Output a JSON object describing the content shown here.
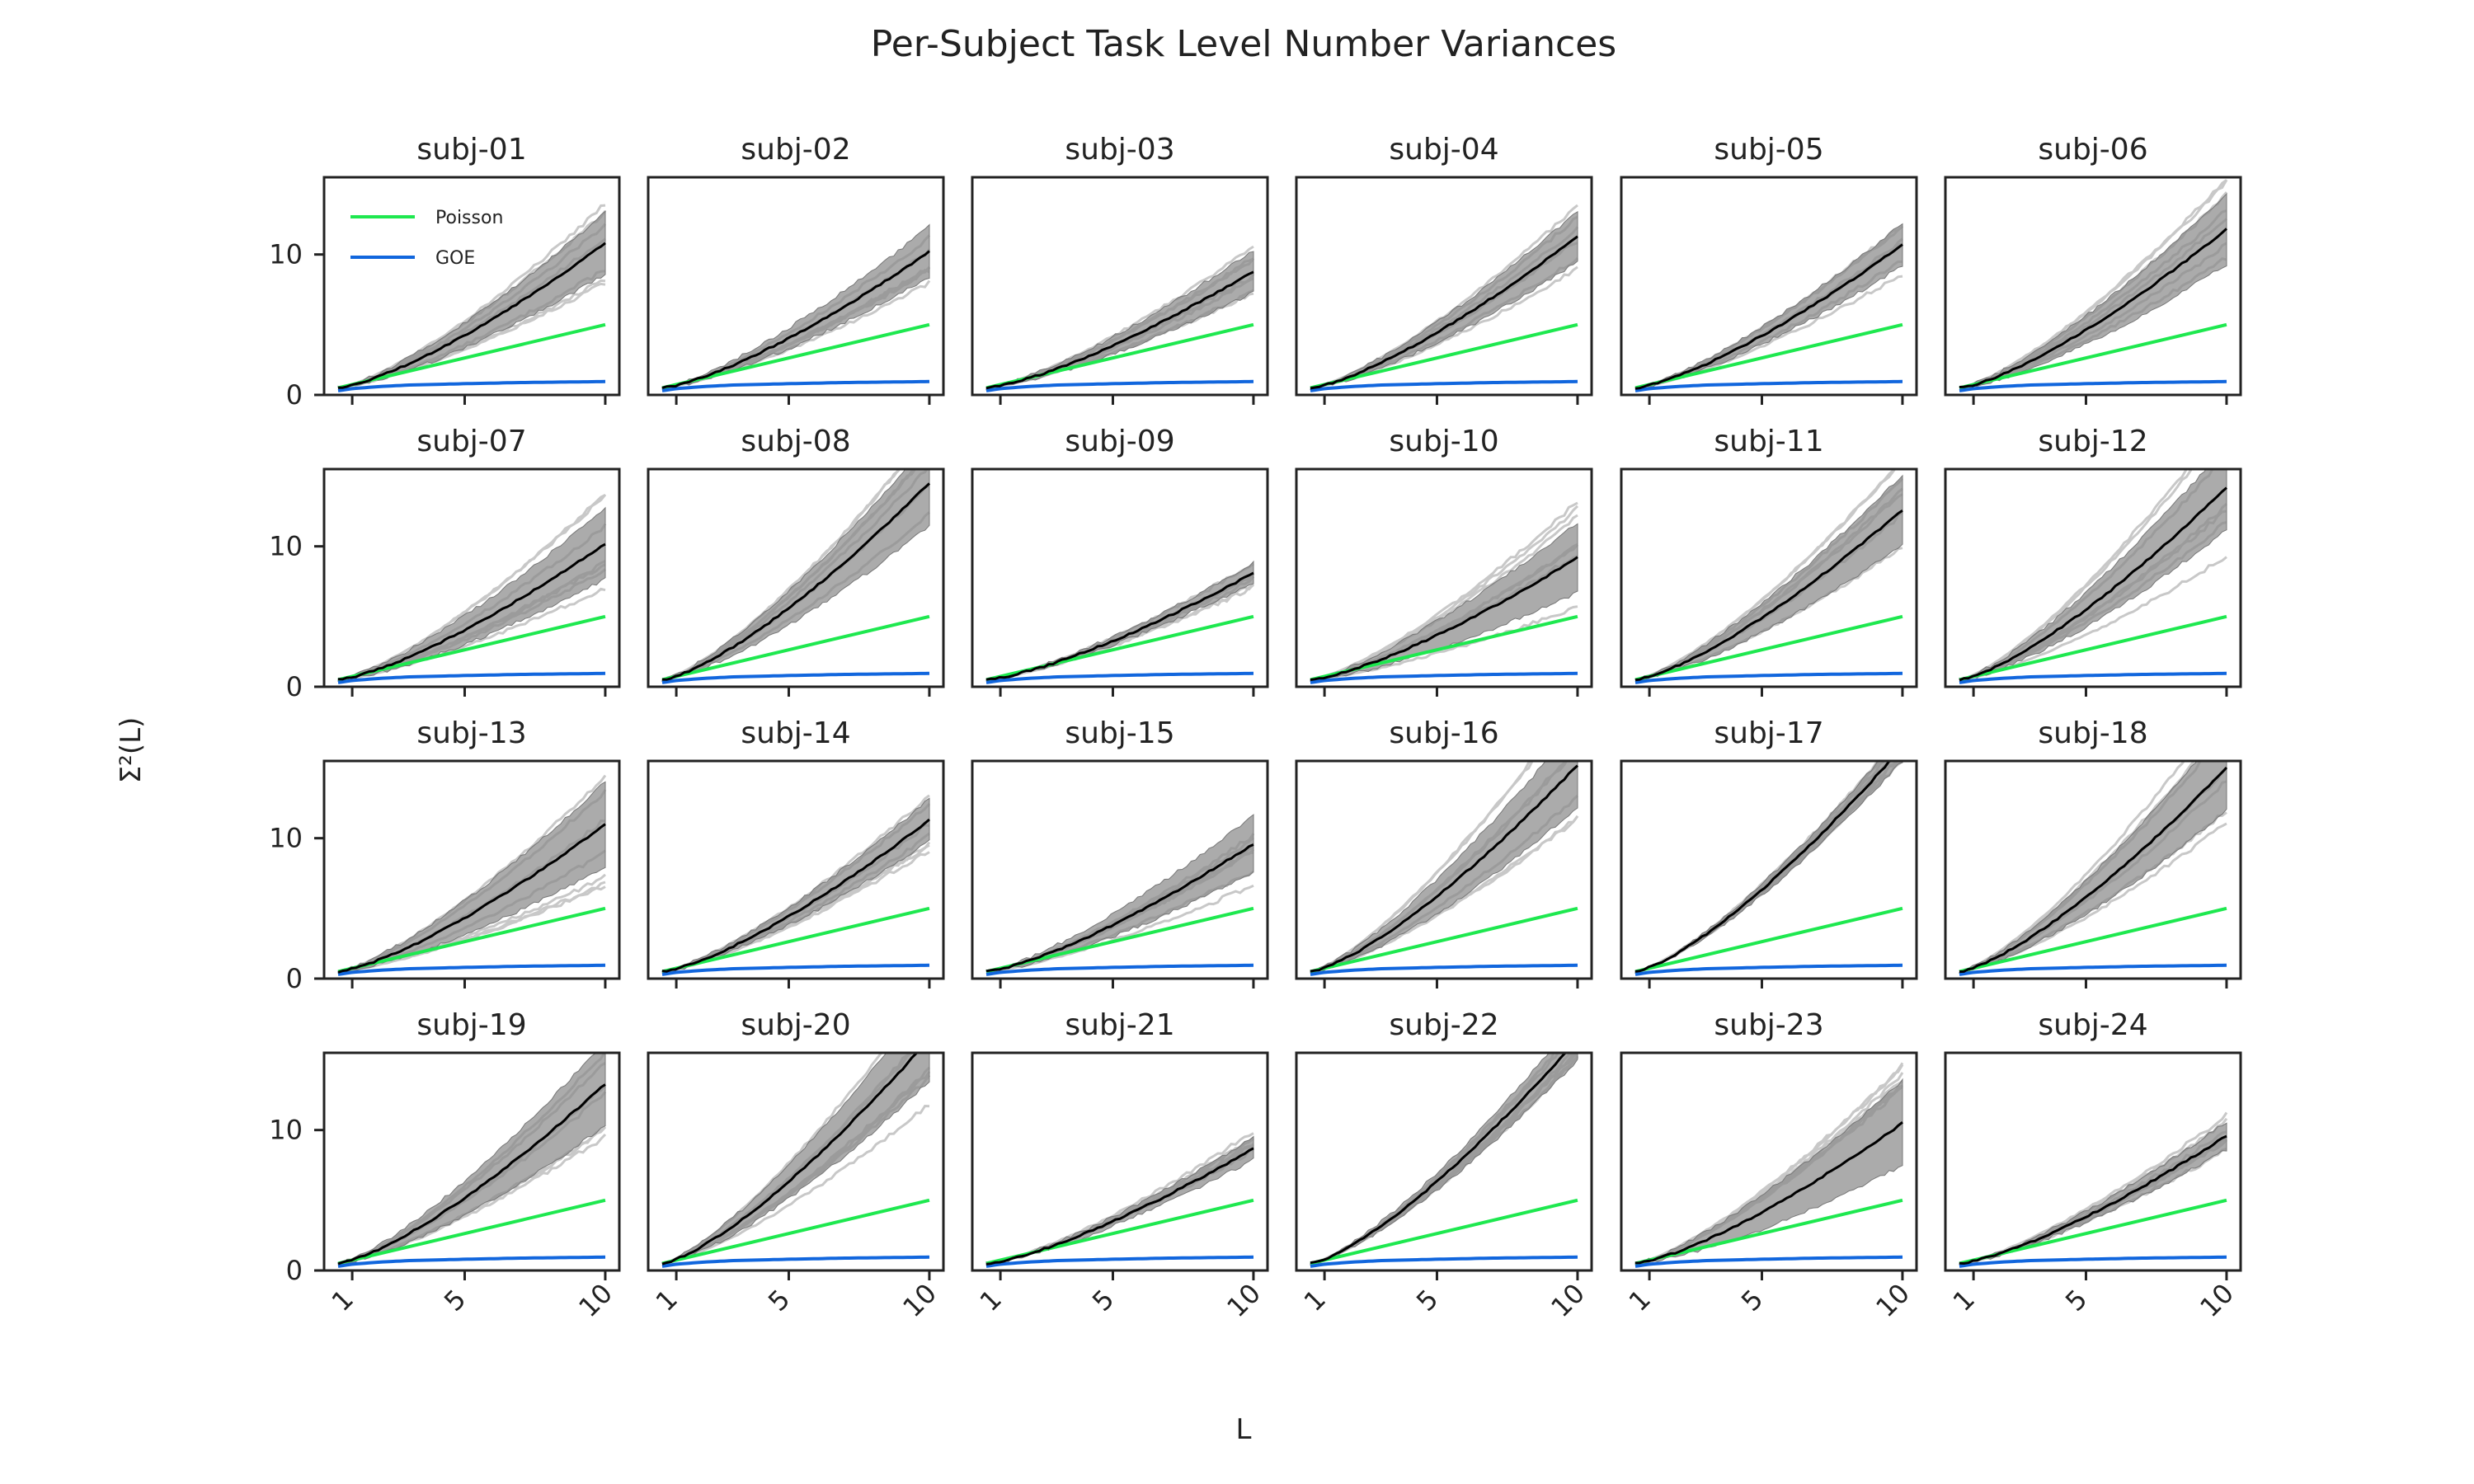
{
  "chart_data": {
    "type": "line",
    "title": "Per-Subject Task Level Number Variances",
    "xlabel": "L",
    "ylabel": "Σ²(L)",
    "grid": false,
    "legend_placement": "top-left",
    "xlim": [
      0,
      10.5
    ],
    "ylim": [
      0,
      15.5
    ],
    "xticks": [
      1,
      5,
      10
    ],
    "yticks": [
      0,
      10
    ],
    "layout": {
      "rows": 4,
      "cols": 6
    },
    "colors": {
      "poisson": "#1ee84f",
      "goe": "#1166dd",
      "mean": "#000000",
      "band": "#888888",
      "runs": "#c8c8c8"
    },
    "legend": [
      {
        "label": "Poisson",
        "color": "#1ee84f"
      },
      {
        "label": "GOE",
        "color": "#1166dd"
      }
    ],
    "reference_series": [
      {
        "name": "Poisson",
        "x": [
          0.5,
          10
        ],
        "values": [
          0.5,
          5.0
        ]
      },
      {
        "name": "GOE",
        "x": [
          0.5,
          1,
          2,
          3,
          5,
          7,
          10
        ],
        "values": [
          0.3,
          0.45,
          0.6,
          0.7,
          0.8,
          0.88,
          0.95
        ]
      }
    ],
    "panels": [
      {
        "title": "subj-01",
        "mean_at_10": 10.8,
        "band_halfwidth_at_10": 2.2
      },
      {
        "title": "subj-02",
        "mean_at_10": 10.2,
        "band_halfwidth_at_10": 1.8
      },
      {
        "title": "subj-03",
        "mean_at_10": 8.8,
        "band_halfwidth_at_10": 1.5
      },
      {
        "title": "subj-04",
        "mean_at_10": 11.3,
        "band_halfwidth_at_10": 1.8
      },
      {
        "title": "subj-05",
        "mean_at_10": 10.7,
        "band_halfwidth_at_10": 1.5
      },
      {
        "title": "subj-06",
        "mean_at_10": 11.8,
        "band_halfwidth_at_10": 2.5
      },
      {
        "title": "subj-07",
        "mean_at_10": 10.2,
        "band_halfwidth_at_10": 2.5
      },
      {
        "title": "subj-08",
        "mean_at_10": 14.5,
        "band_halfwidth_at_10": 3.0
      },
      {
        "title": "subj-09",
        "mean_at_10": 8.1,
        "band_halfwidth_at_10": 0.7
      },
      {
        "title": "subj-10",
        "mean_at_10": 9.2,
        "band_halfwidth_at_10": 2.5
      },
      {
        "title": "subj-11",
        "mean_at_10": 12.6,
        "band_halfwidth_at_10": 2.5
      },
      {
        "title": "subj-12",
        "mean_at_10": 14.2,
        "band_halfwidth_at_10": 3.0
      },
      {
        "title": "subj-13",
        "mean_at_10": 11.0,
        "band_halfwidth_at_10": 3.0
      },
      {
        "title": "subj-14",
        "mean_at_10": 11.3,
        "band_halfwidth_at_10": 1.5
      },
      {
        "title": "subj-15",
        "mean_at_10": 9.6,
        "band_halfwidth_at_10": 2.0
      },
      {
        "title": "subj-16",
        "mean_at_10": 15.2,
        "band_halfwidth_at_10": 3.0
      },
      {
        "title": "subj-17",
        "mean_at_10": 16.5,
        "band_halfwidth_at_10": 1.0
      },
      {
        "title": "subj-18",
        "mean_at_10": 15.0,
        "band_halfwidth_at_10": 3.0
      },
      {
        "title": "subj-19",
        "mean_at_10": 13.3,
        "band_halfwidth_at_10": 3.0
      },
      {
        "title": "subj-20",
        "mean_at_10": 16.5,
        "band_halfwidth_at_10": 3.0
      },
      {
        "title": "subj-21",
        "mean_at_10": 8.7,
        "band_halfwidth_at_10": 0.8
      },
      {
        "title": "subj-22",
        "mean_at_10": 16.5,
        "band_halfwidth_at_10": 1.5
      },
      {
        "title": "subj-23",
        "mean_at_10": 10.5,
        "band_halfwidth_at_10": 3.0
      },
      {
        "title": "subj-24",
        "mean_at_10": 9.6,
        "band_halfwidth_at_10": 1.0
      }
    ]
  }
}
